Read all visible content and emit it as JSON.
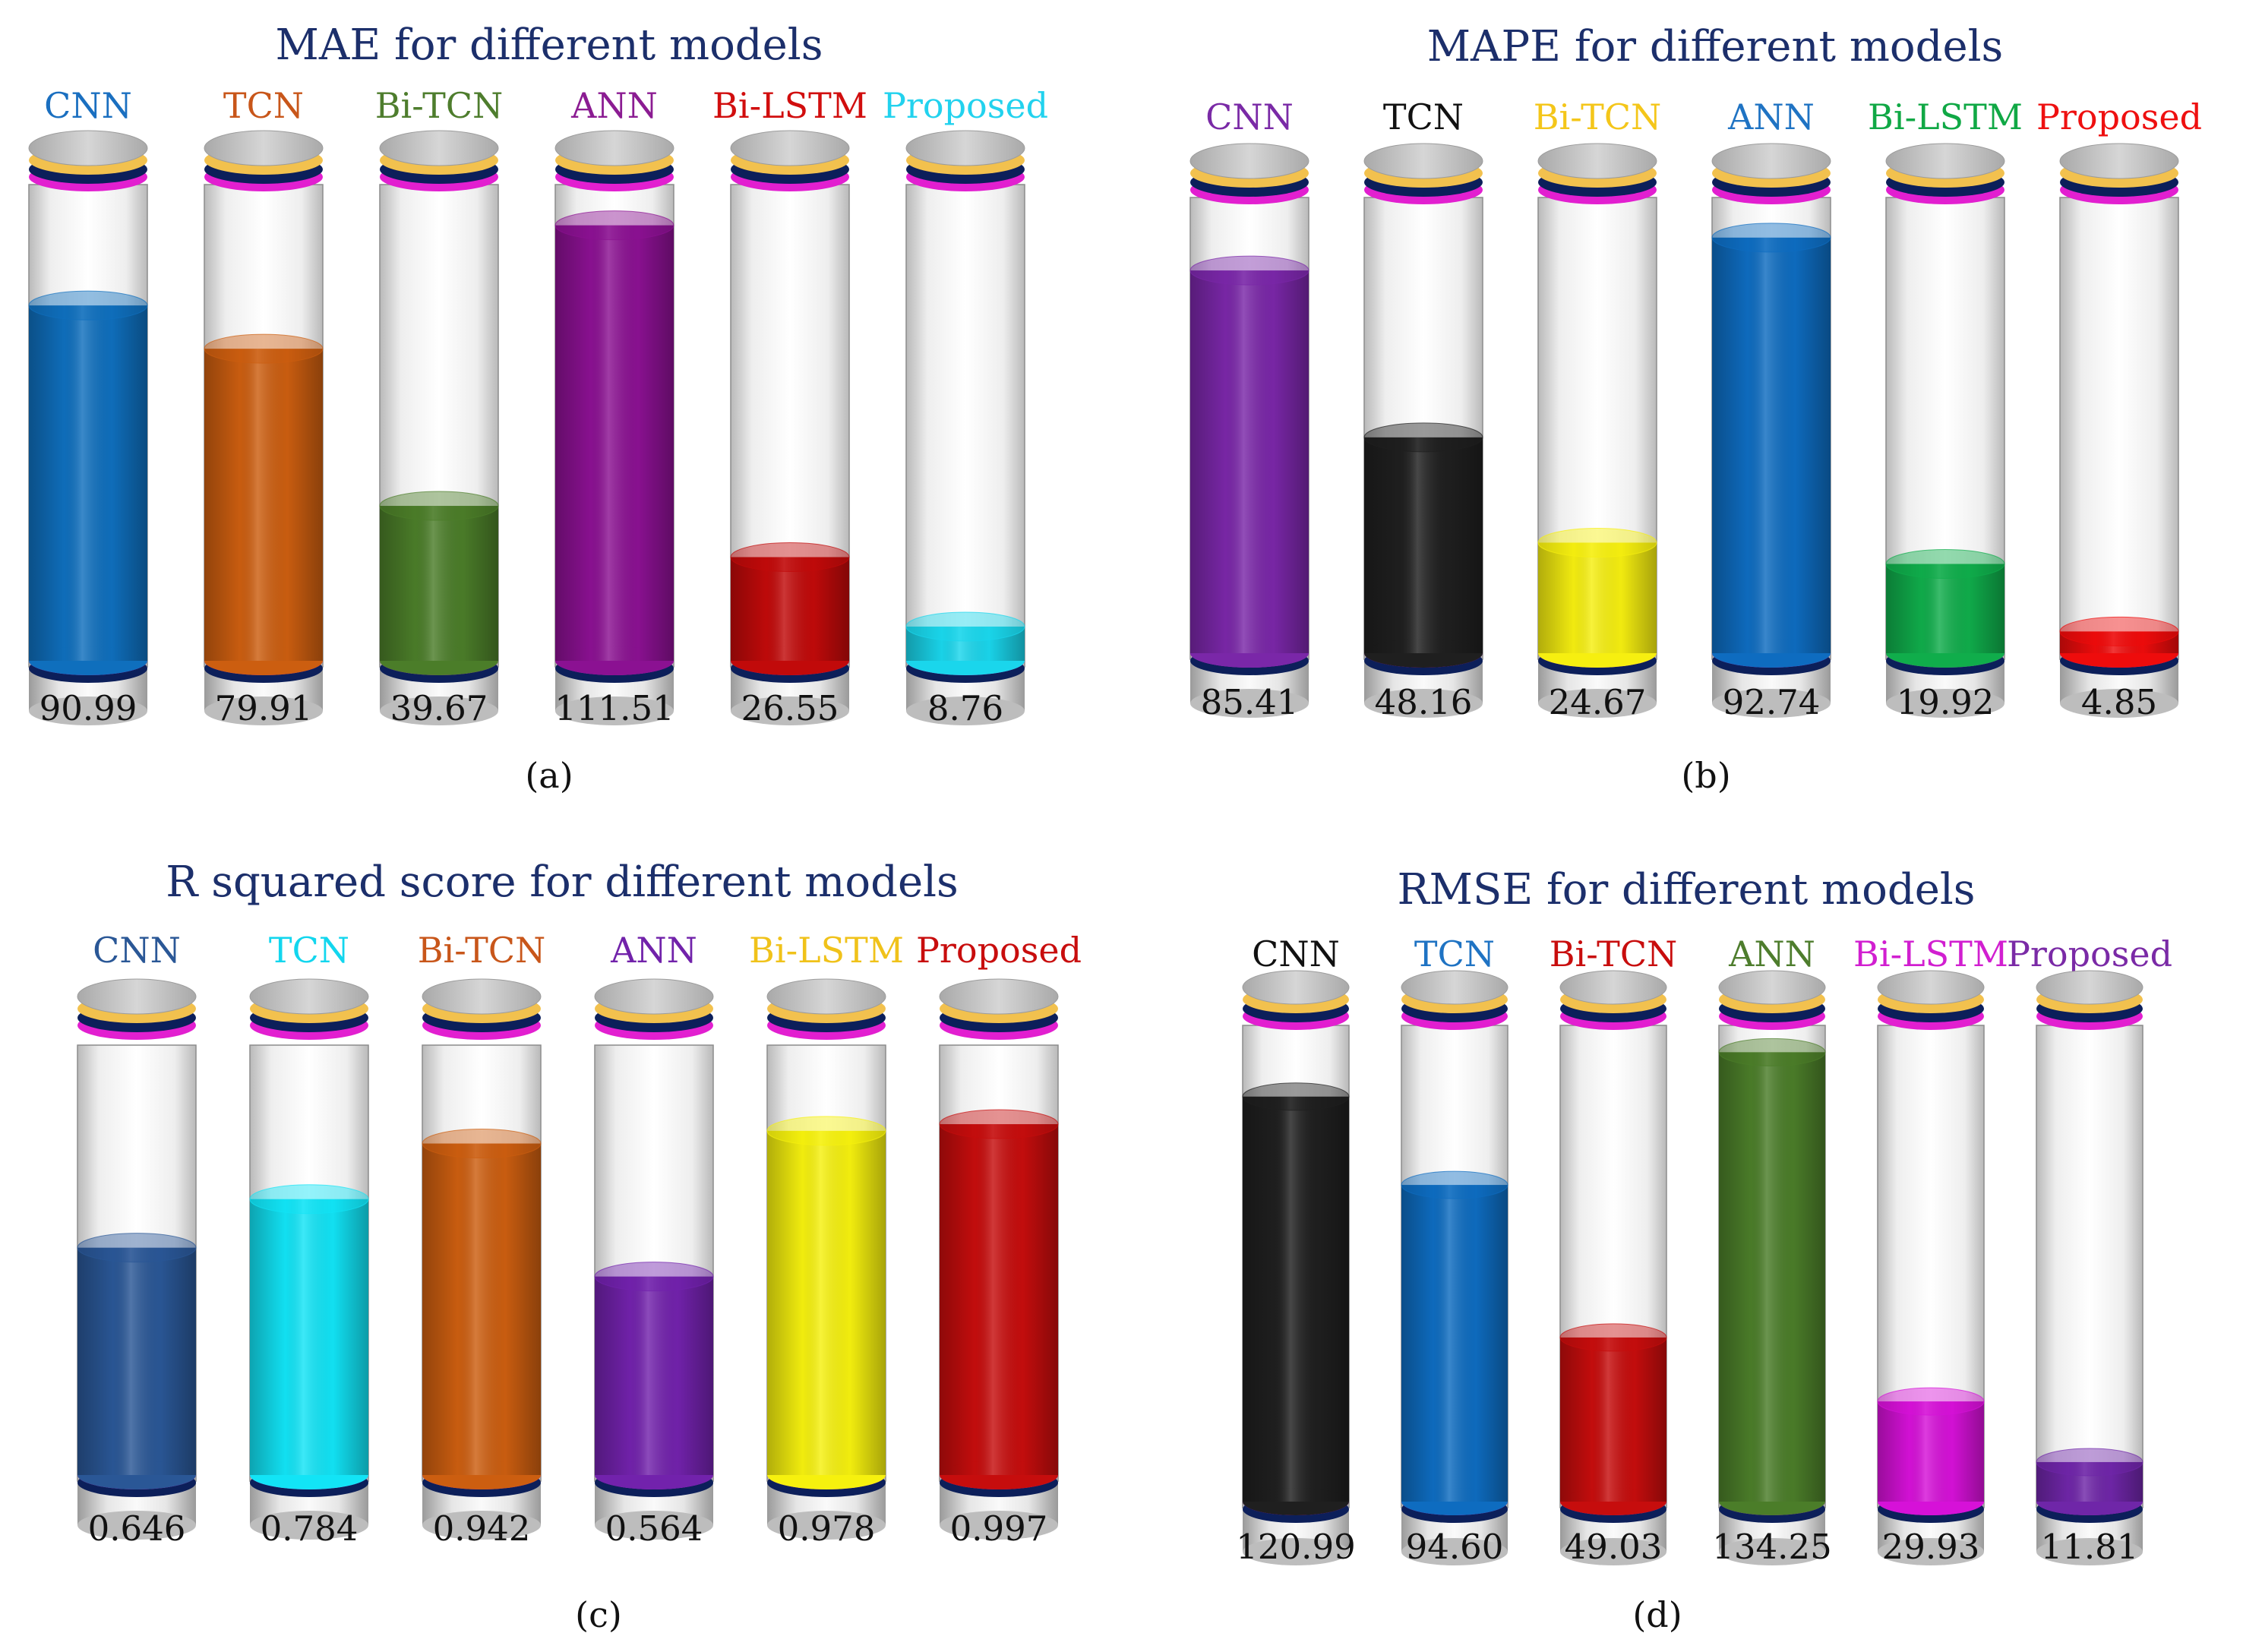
{
  "colors": {
    "title": "#1c2f6b",
    "outline": "#8c8c8c",
    "cap_gold": "#f2c14e",
    "band_navy": "#0c1f5a",
    "band_magenta": "#e21fd0",
    "value_text": "#111111"
  },
  "chart_data": [
    {
      "type": "bar",
      "title": "MAE for different models",
      "caption": "(a)",
      "categories": [
        "CNN",
        "TCN",
        "Bi-TCN",
        "ANN",
        "Bi-LSTM",
        "Proposed"
      ],
      "values": [
        90.99,
        79.91,
        39.67,
        111.51,
        26.55,
        8.76
      ],
      "value_labels": [
        "90.99",
        "79.91",
        "39.67",
        "111.51",
        "26.55",
        "8.76"
      ],
      "bar_colors": [
        "#0f6fbd",
        "#cc5e10",
        "#4b7d29",
        "#8b1192",
        "#c10a0a",
        "#1ad6ec"
      ],
      "label_colors": [
        "#1a6fc0",
        "#c8561a",
        "#4e7d2d",
        "#8b1c92",
        "#d10e0e",
        "#22d2ee"
      ],
      "ylim": [
        0,
        120
      ]
    },
    {
      "type": "bar",
      "title": "MAPE for different models",
      "caption": "(b)",
      "categories": [
        "CNN",
        "TCN",
        "Bi-TCN",
        "ANN",
        "Bi-LSTM",
        "Proposed"
      ],
      "values": [
        85.41,
        48.16,
        24.67,
        92.74,
        19.92,
        4.85
      ],
      "value_labels": [
        "85.41",
        "48.16",
        "24.67",
        "92.74",
        "19.92",
        "4.85"
      ],
      "bar_colors": [
        "#7a27a8",
        "#1f1f1f",
        "#f6ef10",
        "#0e6cc0",
        "#10ad4b",
        "#ee0c0c"
      ],
      "label_colors": [
        "#7a2aa6",
        "#111111",
        "#f4c61a",
        "#1f73c3",
        "#10a845",
        "#ee1010"
      ],
      "ylim": [
        0,
        100
      ]
    },
    {
      "type": "bar",
      "title": "R squared score for different models",
      "caption": "(c)",
      "categories": [
        "CNN",
        "TCN",
        "Bi-TCN",
        "ANN",
        "Bi-LSTM",
        "Proposed"
      ],
      "values": [
        0.646,
        0.784,
        0.942,
        0.564,
        0.978,
        0.997
      ],
      "value_labels": [
        "0.646",
        "0.784",
        "0.942",
        "0.564",
        "0.978",
        "0.997"
      ],
      "bar_colors": [
        "#2a5796",
        "#12e4f6",
        "#cc5e10",
        "#7222ac",
        "#f6f10e",
        "#c60d0d"
      ],
      "label_colors": [
        "#2a5796",
        "#12d6ee",
        "#c8561a",
        "#7122aa",
        "#f0c21a",
        "#c80d0d"
      ],
      "ylim": [
        0,
        1.2
      ]
    },
    {
      "type": "bar",
      "title": "RMSE for different models",
      "caption": "(d)",
      "categories": [
        "CNN",
        "TCN",
        "Bi-TCN",
        "ANN",
        "Bi-LSTM",
        "Proposed"
      ],
      "values": [
        120.99,
        94.6,
        49.03,
        134.25,
        29.93,
        11.81
      ],
      "value_labels": [
        "120.99",
        "94.60",
        "49.03",
        "134.25",
        "29.93",
        "11.81"
      ],
      "bar_colors": [
        "#1f1f1f",
        "#0e6cc0",
        "#c60d0d",
        "#4b7d29",
        "#d611d8",
        "#6f26a8"
      ],
      "label_colors": [
        "#111111",
        "#1f73c3",
        "#c80d0d",
        "#4e7d2d",
        "#d11fd0",
        "#7a2aa6"
      ],
      "ylim": [
        0,
        140
      ]
    }
  ]
}
